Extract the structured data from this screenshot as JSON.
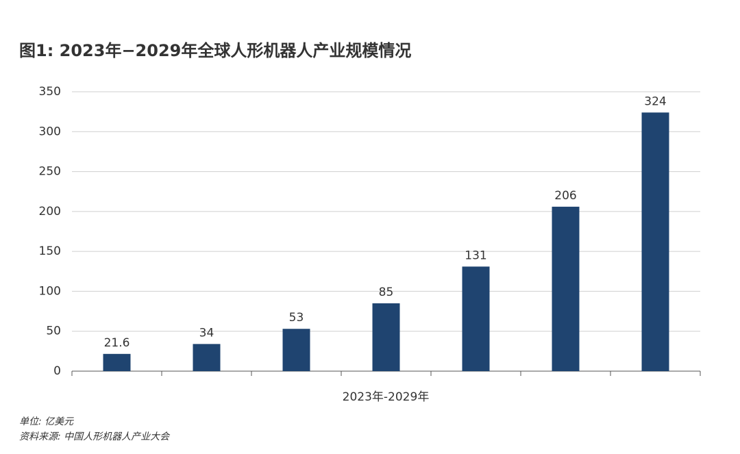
{
  "chart_data": {
    "type": "bar",
    "title": "图1: 2023年−2029年全球人形机器人产业规模情况",
    "x_label": "2023年-2029年",
    "categories": [
      null,
      null,
      null,
      null,
      null,
      null,
      null
    ],
    "values": [
      21.6,
      34,
      53,
      85,
      131,
      206,
      324
    ],
    "color": "#1f4470",
    "ylim": [
      0,
      350
    ],
    "yticks": [
      0,
      50,
      100,
      150,
      200,
      250,
      300,
      350
    ],
    "grid": true,
    "notes": [
      "单位: 亿美元",
      "资料来源: 中国人形机器人产业大会"
    ]
  }
}
